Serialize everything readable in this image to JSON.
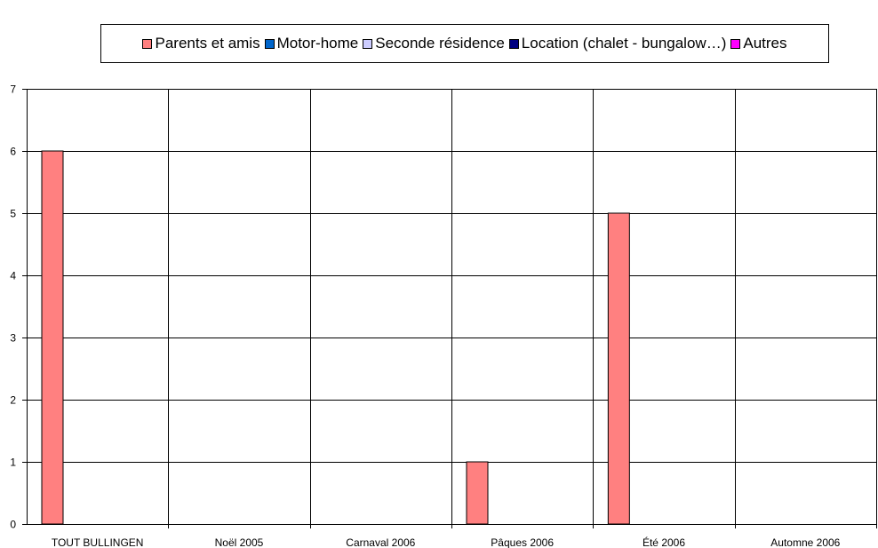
{
  "chart_data": {
    "type": "bar",
    "title": "",
    "xlabel": "",
    "ylabel": "",
    "ylim": [
      0,
      7
    ],
    "yticks": [
      0,
      1,
      2,
      3,
      4,
      5,
      6,
      7
    ],
    "grid": true,
    "legend_position": "top",
    "categories": [
      "TOUT BULLINGEN",
      "Noël 2005",
      "Carnaval 2006",
      "Pâques 2006",
      "Été 2006",
      "Automne 2006"
    ],
    "series": [
      {
        "name": "Parents et amis",
        "color": "#ff8080",
        "values": [
          6,
          0,
          0,
          1,
          5,
          0
        ]
      },
      {
        "name": "Motor-home",
        "color": "#0066cc",
        "values": [
          0,
          0,
          0,
          0,
          0,
          0
        ]
      },
      {
        "name": "Seconde résidence",
        "color": "#ccccff",
        "values": [
          0,
          0,
          0,
          0,
          0,
          0
        ]
      },
      {
        "name": "Location (chalet - bungalow…)",
        "color": "#000080",
        "values": [
          0,
          0,
          0,
          0,
          0,
          0
        ]
      },
      {
        "name": "Autres",
        "color": "#ff00ff",
        "values": [
          0,
          0,
          0,
          0,
          0,
          0
        ]
      }
    ]
  }
}
